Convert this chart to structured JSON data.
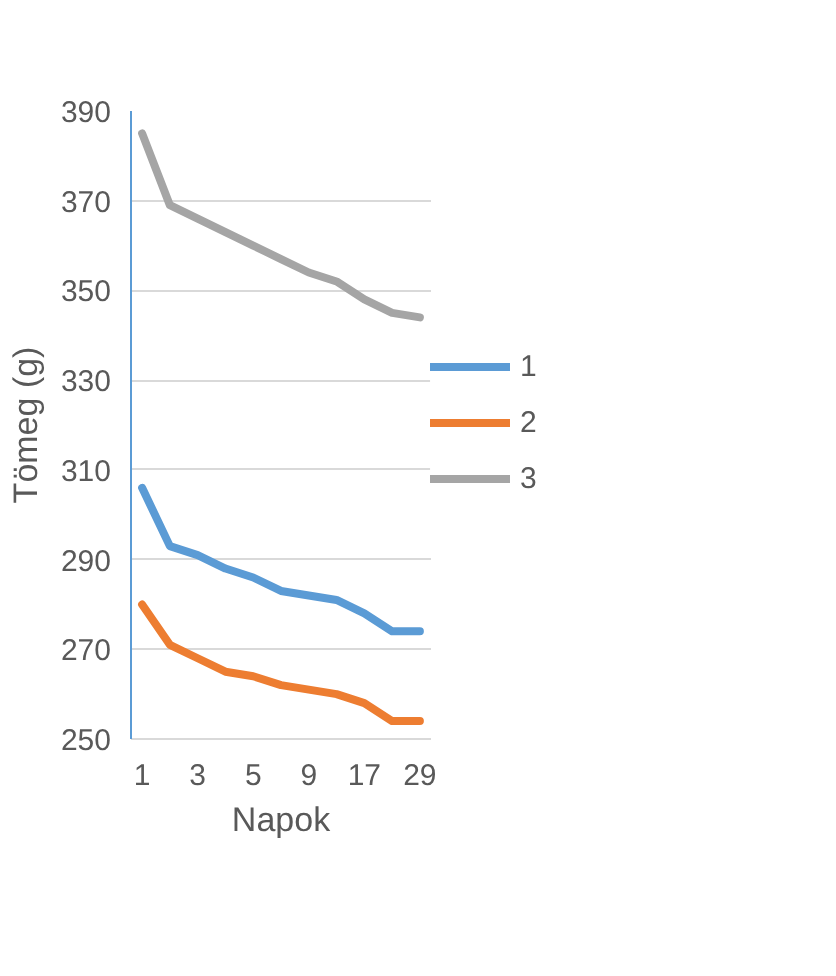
{
  "chart_data": {
    "type": "line",
    "xlabel": "Napok",
    "ylabel": "Tömeg (g)",
    "categories": [
      "1",
      null,
      "3",
      null,
      "5",
      null,
      "9",
      null,
      "17",
      null,
      "29"
    ],
    "ylim": [
      250,
      390
    ],
    "yticks": [
      250,
      270,
      290,
      310,
      330,
      350,
      370,
      390
    ],
    "grid": "y",
    "legend": "right",
    "marker": "none",
    "line_style": "solid",
    "series": [
      {
        "name": "1",
        "color": "#5b9bd5",
        "values": [
          306,
          293,
          291,
          288,
          286,
          283,
          282,
          281,
          278,
          274,
          274
        ]
      },
      {
        "name": "2",
        "color": "#ed7d31",
        "values": [
          280,
          271,
          268,
          265,
          264,
          262,
          261,
          260,
          258,
          254,
          254
        ]
      },
      {
        "name": "3",
        "color": "#a5a5a5",
        "values": [
          385,
          369,
          366,
          363,
          360,
          357,
          354,
          352,
          348,
          345,
          344
        ]
      }
    ]
  }
}
